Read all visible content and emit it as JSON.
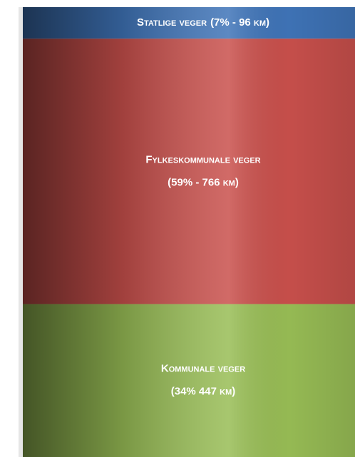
{
  "chart_data": {
    "type": "stacked_column",
    "ylim": [
      0,
      100
    ],
    "series": [
      {
        "name": "Kommunale veger",
        "color": "#98bd55",
        "values": [
          34
        ],
        "value_labels": [
          "(34% 447 km)"
        ]
      },
      {
        "name": "Fylkeskommunale veger",
        "color": "#c9504c",
        "values": [
          59
        ],
        "value_labels": [
          "(59% - 766 km)"
        ]
      },
      {
        "name": "Statlige veger",
        "color": "#3f74b8",
        "values": [
          7
        ],
        "value_labels": [
          "(7% - 96 km)"
        ]
      }
    ]
  }
}
